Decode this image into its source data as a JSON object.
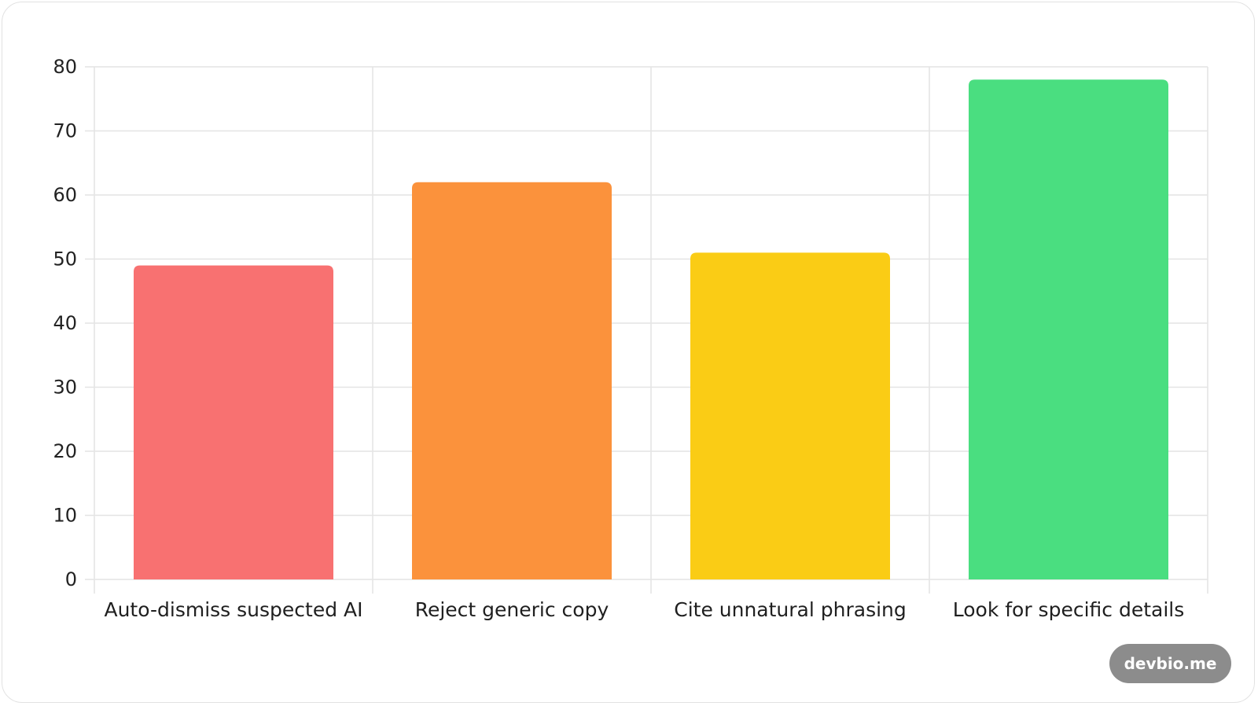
{
  "chart_data": {
    "type": "bar",
    "title": "",
    "xlabel": "",
    "ylabel": "",
    "categories": [
      "Auto-dismiss suspected AI",
      "Reject generic copy",
      "Cite unnatural phrasing",
      "Look for specific details"
    ],
    "values": [
      49,
      62,
      51,
      78
    ],
    "colors": [
      "#f87171",
      "#fb923c",
      "#facc15",
      "#4ade80"
    ],
    "ylim": [
      0,
      80
    ],
    "yticks": [
      0,
      10,
      20,
      30,
      40,
      50,
      60,
      70,
      80
    ],
    "grid": true,
    "legend": "none"
  },
  "watermark": "devbio.me"
}
